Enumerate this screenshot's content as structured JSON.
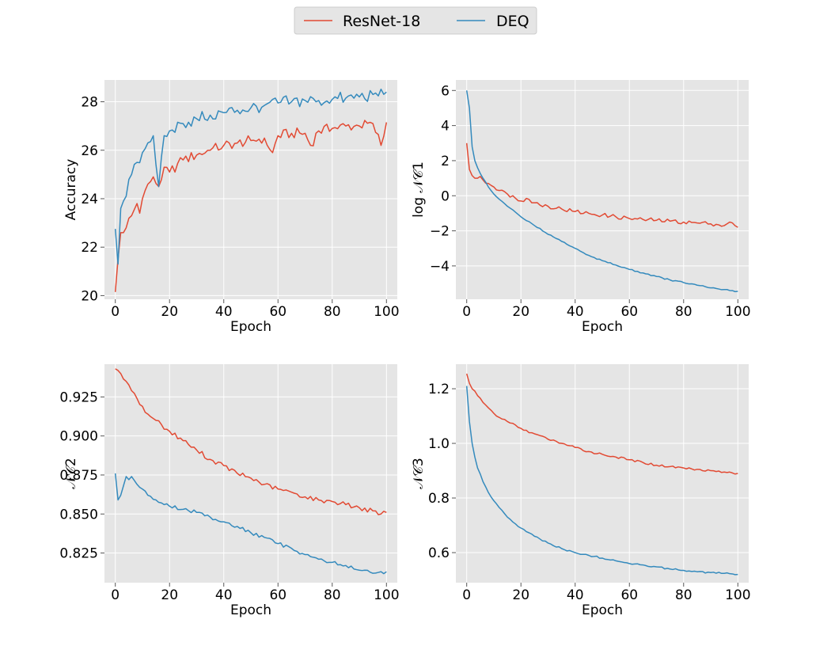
{
  "legend": {
    "entries": [
      {
        "name": "ResNet-18",
        "color": "#E24A33"
      },
      {
        "name": "DEQ",
        "color": "#348ABD"
      }
    ],
    "placement": "top-center"
  },
  "colors": {
    "panel_background": "#E5E5E5",
    "grid": "#FFFFFF",
    "resnet": "#E24A33",
    "deq": "#348ABD"
  },
  "chart_data": [
    {
      "type": "line",
      "xlabel": "Epoch",
      "ylabel": "Accuracy",
      "xlim": [
        -4,
        104
      ],
      "ylim": [
        19.85,
        28.9
      ],
      "xticks": [
        0,
        20,
        40,
        60,
        80,
        100
      ],
      "xtick_labels": [
        "0",
        "20",
        "40",
        "60",
        "80",
        "100"
      ],
      "yticks": [
        20,
        22,
        24,
        26,
        28
      ],
      "ytick_labels": [
        "20",
        "22",
        "24",
        "26",
        "28"
      ],
      "grid": true,
      "series": [
        {
          "name": "ResNet-18",
          "keypoints": [
            [
              0,
              20.15
            ],
            [
              1,
              21.5
            ],
            [
              2,
              22.6
            ],
            [
              3,
              22.6
            ],
            [
              4,
              22.8
            ],
            [
              6,
              23.3
            ],
            [
              8,
              23.8
            ],
            [
              9,
              23.4
            ],
            [
              10,
              24.0
            ],
            [
              12,
              24.6
            ],
            [
              14,
              24.9
            ],
            [
              16,
              24.5
            ],
            [
              18,
              25.3
            ],
            [
              20,
              25.1
            ],
            [
              25,
              25.6
            ],
            [
              30,
              25.8
            ],
            [
              35,
              26.0
            ],
            [
              40,
              26.2
            ],
            [
              45,
              26.3
            ],
            [
              50,
              26.4
            ],
            [
              55,
              26.5
            ],
            [
              58,
              25.9
            ],
            [
              60,
              26.6
            ],
            [
              65,
              26.7
            ],
            [
              70,
              26.7
            ],
            [
              72,
              26.2
            ],
            [
              75,
              26.8
            ],
            [
              80,
              26.9
            ],
            [
              85,
              27.0
            ],
            [
              90,
              27.0
            ],
            [
              95,
              27.1
            ],
            [
              98,
              26.2
            ],
            [
              100,
              27.15
            ]
          ],
          "noise": 0.22
        },
        {
          "name": "DEQ",
          "keypoints": [
            [
              0,
              22.75
            ],
            [
              1,
              21.3
            ],
            [
              2,
              23.6
            ],
            [
              3,
              23.9
            ],
            [
              4,
              24.1
            ],
            [
              6,
              25.0
            ],
            [
              8,
              25.5
            ],
            [
              10,
              25.9
            ],
            [
              12,
              26.3
            ],
            [
              14,
              26.6
            ],
            [
              16,
              24.5
            ],
            [
              18,
              26.6
            ],
            [
              20,
              26.8
            ],
            [
              25,
              27.1
            ],
            [
              30,
              27.3
            ],
            [
              35,
              27.45
            ],
            [
              40,
              27.55
            ],
            [
              45,
              27.65
            ],
            [
              50,
              27.75
            ],
            [
              55,
              27.85
            ],
            [
              60,
              27.95
            ],
            [
              65,
              28.0
            ],
            [
              70,
              28.05
            ],
            [
              75,
              28.05
            ],
            [
              80,
              28.1
            ],
            [
              85,
              28.15
            ],
            [
              90,
              28.2
            ],
            [
              95,
              28.3
            ],
            [
              100,
              28.4
            ]
          ],
          "noise": 0.28
        }
      ]
    },
    {
      "type": "line",
      "xlabel": "Epoch",
      "ylabel": "log 𝒩𝒞1",
      "xlim": [
        -4,
        104
      ],
      "ylim": [
        -5.9,
        6.6
      ],
      "xticks": [
        0,
        20,
        40,
        60,
        80,
        100
      ],
      "xtick_labels": [
        "0",
        "20",
        "40",
        "60",
        "80",
        "100"
      ],
      "yticks": [
        -4,
        -2,
        0,
        2,
        4,
        6
      ],
      "ytick_labels": [
        "−4",
        "−2",
        "0",
        "2",
        "4",
        "6"
      ],
      "grid": true,
      "series": [
        {
          "name": "ResNet-18",
          "keypoints": [
            [
              0,
              3.0
            ],
            [
              1,
              1.5
            ],
            [
              2,
              1.15
            ],
            [
              3,
              1.0
            ],
            [
              4,
              1.0
            ],
            [
              5,
              1.1
            ],
            [
              6,
              0.9
            ],
            [
              8,
              0.7
            ],
            [
              10,
              0.5
            ],
            [
              12,
              0.3
            ],
            [
              15,
              0.1
            ],
            [
              20,
              -0.3
            ],
            [
              22,
              -0.15
            ],
            [
              25,
              -0.4
            ],
            [
              30,
              -0.6
            ],
            [
              35,
              -0.75
            ],
            [
              40,
              -0.9
            ],
            [
              45,
              -1.0
            ],
            [
              50,
              -1.1
            ],
            [
              55,
              -1.2
            ],
            [
              60,
              -1.3
            ],
            [
              65,
              -1.35
            ],
            [
              70,
              -1.4
            ],
            [
              75,
              -1.45
            ],
            [
              80,
              -1.5
            ],
            [
              85,
              -1.55
            ],
            [
              90,
              -1.6
            ],
            [
              95,
              -1.7
            ],
            [
              97,
              -1.5
            ],
            [
              100,
              -1.8
            ]
          ],
          "noise": 0.12
        },
        {
          "name": "DEQ",
          "keypoints": [
            [
              0,
              6.0
            ],
            [
              1,
              5.0
            ],
            [
              2,
              2.8
            ],
            [
              3,
              2.0
            ],
            [
              4,
              1.6
            ],
            [
              6,
              1.0
            ],
            [
              8,
              0.5
            ],
            [
              10,
              0.1
            ],
            [
              12,
              -0.2
            ],
            [
              15,
              -0.6
            ],
            [
              20,
              -1.2
            ],
            [
              25,
              -1.7
            ],
            [
              30,
              -2.2
            ],
            [
              35,
              -2.6
            ],
            [
              40,
              -3.0
            ],
            [
              45,
              -3.4
            ],
            [
              50,
              -3.7
            ],
            [
              55,
              -3.95
            ],
            [
              60,
              -4.2
            ],
            [
              65,
              -4.4
            ],
            [
              70,
              -4.6
            ],
            [
              75,
              -4.8
            ],
            [
              80,
              -4.95
            ],
            [
              85,
              -5.1
            ],
            [
              90,
              -5.25
            ],
            [
              95,
              -5.35
            ],
            [
              100,
              -5.45
            ]
          ],
          "noise": 0.04
        }
      ]
    },
    {
      "type": "line",
      "xlabel": "Epoch",
      "ylabel": "𝒩𝒞2",
      "xlim": [
        -4,
        104
      ],
      "ylim": [
        0.806,
        0.946
      ],
      "xticks": [
        0,
        20,
        40,
        60,
        80,
        100
      ],
      "xtick_labels": [
        "0",
        "20",
        "40",
        "60",
        "80",
        "100"
      ],
      "yticks": [
        0.825,
        0.85,
        0.875,
        0.9,
        0.925
      ],
      "ytick_labels": [
        "0.825",
        "0.850",
        "0.875",
        "0.900",
        "0.925"
      ],
      "grid": true,
      "series": [
        {
          "name": "ResNet-18",
          "keypoints": [
            [
              0,
              0.943
            ],
            [
              2,
              0.94
            ],
            [
              4,
              0.935
            ],
            [
              6,
              0.929
            ],
            [
              8,
              0.924
            ],
            [
              10,
              0.919
            ],
            [
              12,
              0.914
            ],
            [
              15,
              0.91
            ],
            [
              20,
              0.903
            ],
            [
              25,
              0.897
            ],
            [
              30,
              0.891
            ],
            [
              35,
              0.885
            ],
            [
              40,
              0.881
            ],
            [
              45,
              0.876
            ],
            [
              50,
              0.873
            ],
            [
              55,
              0.869
            ],
            [
              60,
              0.866
            ],
            [
              65,
              0.864
            ],
            [
              70,
              0.861
            ],
            [
              75,
              0.859
            ],
            [
              80,
              0.858
            ],
            [
              85,
              0.856
            ],
            [
              90,
              0.854
            ],
            [
              95,
              0.852
            ],
            [
              98,
              0.85
            ],
            [
              100,
              0.851
            ]
          ],
          "noise": 0.0015
        },
        {
          "name": "DEQ",
          "keypoints": [
            [
              0,
              0.876
            ],
            [
              1,
              0.859
            ],
            [
              2,
              0.862
            ],
            [
              3,
              0.868
            ],
            [
              4,
              0.874
            ],
            [
              5,
              0.872
            ],
            [
              6,
              0.874
            ],
            [
              8,
              0.869
            ],
            [
              10,
              0.866
            ],
            [
              12,
              0.862
            ],
            [
              15,
              0.859
            ],
            [
              20,
              0.855
            ],
            [
              25,
              0.853
            ],
            [
              30,
              0.851
            ],
            [
              35,
              0.848
            ],
            [
              40,
              0.845
            ],
            [
              45,
              0.842
            ],
            [
              50,
              0.838
            ],
            [
              55,
              0.835
            ],
            [
              60,
              0.831
            ],
            [
              65,
              0.828
            ],
            [
              70,
              0.824
            ],
            [
              75,
              0.821
            ],
            [
              80,
              0.819
            ],
            [
              85,
              0.817
            ],
            [
              90,
              0.814
            ],
            [
              95,
              0.812
            ],
            [
              100,
              0.813
            ]
          ],
          "noise": 0.0012
        }
      ]
    },
    {
      "type": "line",
      "xlabel": "Epoch",
      "ylabel": "𝒩𝒞3",
      "xlim": [
        -4,
        104
      ],
      "ylim": [
        0.49,
        1.29
      ],
      "xticks": [
        0,
        20,
        40,
        60,
        80,
        100
      ],
      "xtick_labels": [
        "0",
        "20",
        "40",
        "60",
        "80",
        "100"
      ],
      "yticks": [
        0.6,
        0.8,
        1.0,
        1.2
      ],
      "ytick_labels": [
        "0.6",
        "0.8",
        "1.0",
        "1.2"
      ],
      "grid": true,
      "series": [
        {
          "name": "ResNet-18",
          "keypoints": [
            [
              0,
              1.255
            ],
            [
              1,
              1.22
            ],
            [
              2,
              1.2
            ],
            [
              4,
              1.175
            ],
            [
              6,
              1.15
            ],
            [
              8,
              1.13
            ],
            [
              10,
              1.11
            ],
            [
              12,
              1.095
            ],
            [
              15,
              1.08
            ],
            [
              20,
              1.055
            ],
            [
              25,
              1.035
            ],
            [
              30,
              1.015
            ],
            [
              35,
              1.0
            ],
            [
              40,
              0.985
            ],
            [
              45,
              0.97
            ],
            [
              50,
              0.96
            ],
            [
              55,
              0.95
            ],
            [
              60,
              0.94
            ],
            [
              65,
              0.93
            ],
            [
              70,
              0.92
            ],
            [
              75,
              0.915
            ],
            [
              80,
              0.91
            ],
            [
              85,
              0.905
            ],
            [
              90,
              0.9
            ],
            [
              95,
              0.895
            ],
            [
              100,
              0.89
            ]
          ],
          "noise": 0.004
        },
        {
          "name": "DEQ",
          "keypoints": [
            [
              0,
              1.21
            ],
            [
              1,
              1.08
            ],
            [
              2,
              1.0
            ],
            [
              3,
              0.95
            ],
            [
              4,
              0.91
            ],
            [
              6,
              0.86
            ],
            [
              8,
              0.82
            ],
            [
              10,
              0.79
            ],
            [
              12,
              0.765
            ],
            [
              15,
              0.73
            ],
            [
              20,
              0.69
            ],
            [
              25,
              0.66
            ],
            [
              30,
              0.635
            ],
            [
              35,
              0.615
            ],
            [
              40,
              0.6
            ],
            [
              45,
              0.59
            ],
            [
              50,
              0.58
            ],
            [
              55,
              0.57
            ],
            [
              60,
              0.56
            ],
            [
              65,
              0.555
            ],
            [
              70,
              0.548
            ],
            [
              75,
              0.54
            ],
            [
              80,
              0.535
            ],
            [
              85,
              0.53
            ],
            [
              90,
              0.527
            ],
            [
              95,
              0.524
            ],
            [
              100,
              0.52
            ]
          ],
          "noise": 0.003
        }
      ]
    }
  ]
}
